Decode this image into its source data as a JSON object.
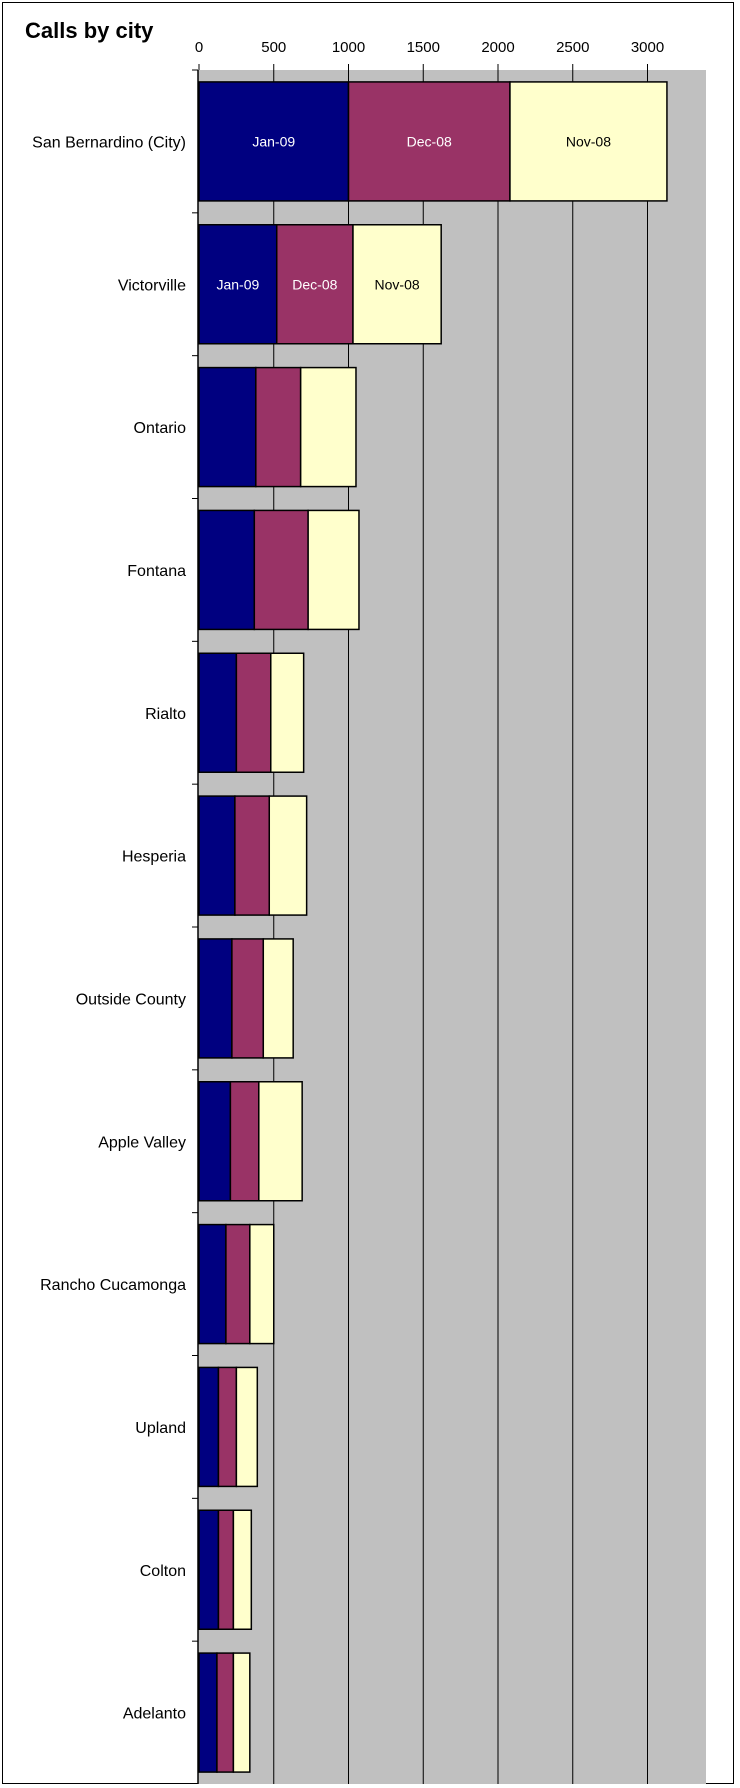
{
  "chart_data": {
    "type": "bar",
    "orientation": "horizontal",
    "stacked": true,
    "title": "Calls by city",
    "xlabel": "",
    "ylabel": "",
    "xlim": [
      0,
      3400
    ],
    "xticks": [
      "0",
      "500",
      "1000",
      "1500",
      "2000",
      "2500",
      "3000"
    ],
    "grid": true,
    "legend": "none",
    "categories": [
      "San Bernardino (City)",
      "Victorville",
      "Ontario",
      "Fontana",
      "Rialto",
      "Hesperia",
      "Outside County",
      "Apple Valley",
      "Rancho Cucamonga",
      "Upland",
      "Colton",
      "Adelanto"
    ],
    "series": [
      {
        "name": "Jan-09",
        "color": "#000080",
        "text_color": "#ffffff",
        "values": [
          1000,
          520,
          380,
          370,
          250,
          240,
          220,
          210,
          180,
          130,
          130,
          120
        ],
        "labeled": [
          true,
          true,
          false,
          false,
          false,
          false,
          false,
          false,
          false,
          false,
          false,
          false
        ]
      },
      {
        "name": "Dec-08",
        "color": "#993366",
        "text_color": "#ffffff",
        "values": [
          1080,
          510,
          300,
          360,
          230,
          230,
          210,
          190,
          160,
          120,
          100,
          110
        ],
        "labeled": [
          true,
          true,
          false,
          false,
          false,
          false,
          false,
          false,
          false,
          false,
          false,
          false
        ]
      },
      {
        "name": "Nov-08",
        "color": "#ffffcc",
        "text_color": "#000000",
        "values": [
          1050,
          590,
          370,
          340,
          220,
          250,
          200,
          290,
          160,
          140,
          120,
          110
        ],
        "labeled": [
          true,
          true,
          false,
          false,
          false,
          false,
          false,
          false,
          false,
          false,
          false,
          false
        ]
      }
    ],
    "colors": {
      "plot_background": "#c0c0c0",
      "gridline": "#000000",
      "bar_outline": "#000000"
    }
  }
}
